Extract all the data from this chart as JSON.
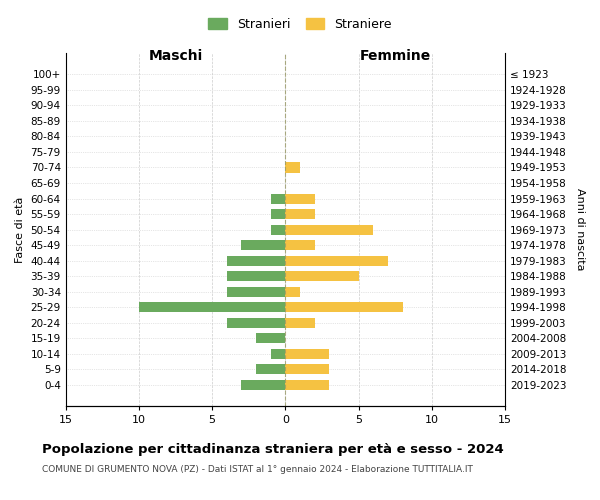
{
  "age_groups": [
    "100+",
    "95-99",
    "90-94",
    "85-89",
    "80-84",
    "75-79",
    "70-74",
    "65-69",
    "60-64",
    "55-59",
    "50-54",
    "45-49",
    "40-44",
    "35-39",
    "30-34",
    "25-29",
    "20-24",
    "15-19",
    "10-14",
    "5-9",
    "0-4"
  ],
  "birth_years": [
    "≤ 1923",
    "1924-1928",
    "1929-1933",
    "1934-1938",
    "1939-1943",
    "1944-1948",
    "1949-1953",
    "1954-1958",
    "1959-1963",
    "1964-1968",
    "1969-1973",
    "1974-1978",
    "1979-1983",
    "1984-1988",
    "1989-1993",
    "1994-1998",
    "1999-2003",
    "2004-2008",
    "2009-2013",
    "2014-2018",
    "2019-2023"
  ],
  "males": [
    0,
    0,
    0,
    0,
    0,
    0,
    0,
    0,
    1,
    1,
    1,
    3,
    4,
    4,
    4,
    10,
    4,
    2,
    1,
    2,
    3
  ],
  "females": [
    0,
    0,
    0,
    0,
    0,
    0,
    1,
    0,
    2,
    2,
    6,
    2,
    7,
    5,
    1,
    8,
    2,
    0,
    3,
    3,
    3
  ],
  "color_males": "#6aaa5e",
  "color_females": "#f5c242",
  "title": "Popolazione per cittadinanza straniera per età e sesso - 2024",
  "subtitle": "COMUNE DI GRUMENTO NOVA (PZ) - Dati ISTAT al 1° gennaio 2024 - Elaborazione TUTTITALIA.IT",
  "legend_males": "Stranieri",
  "legend_females": "Straniere",
  "xlabel_left": "Maschi",
  "xlabel_right": "Femmine",
  "ylabel_left": "Fasce di età",
  "ylabel_right": "Anni di nascita",
  "xlim": 15,
  "background_color": "#ffffff",
  "grid_color": "#cccccc"
}
